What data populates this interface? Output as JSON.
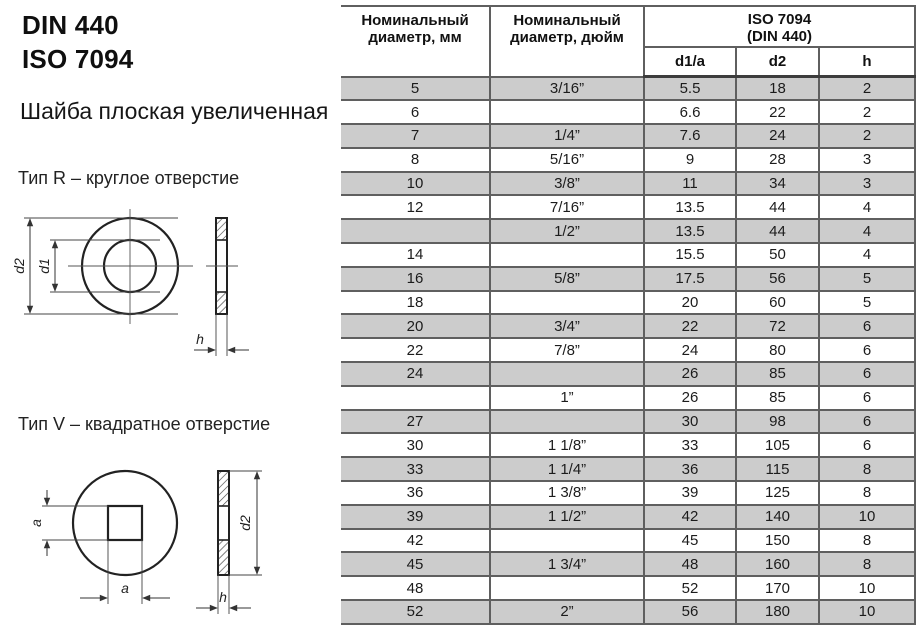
{
  "left": {
    "title_din": "DIN 440",
    "title_iso": "ISO 7094",
    "subtitle": "Шайба плоская увеличенная",
    "type_r_label": "Тип R – круглое отверстие",
    "type_v_label": "Тип V – квадратное отверстие",
    "drawing_r": {
      "dim_outer": "d2",
      "dim_inner": "d1",
      "dim_thickness": "h"
    },
    "drawing_v": {
      "dim_hole_side": "a",
      "dim_hole_bottom": "a",
      "dim_outer": "d2",
      "dim_thickness": "h"
    }
  },
  "table": {
    "header": {
      "col_mm": "Номинальный диаметр, мм",
      "col_inch": "Номинальный диаметр, дюйм",
      "group_title": "ISO 7094",
      "group_subtitle": "(DIN 440)",
      "sub_columns": [
        "d1/a",
        "d2",
        "h"
      ]
    },
    "rows": [
      [
        "5",
        "3/16”",
        "5.5",
        "18",
        "2"
      ],
      [
        "6",
        "",
        "6.6",
        "22",
        "2"
      ],
      [
        "7",
        "1/4”",
        "7.6",
        "24",
        "2"
      ],
      [
        "8",
        "5/16”",
        "9",
        "28",
        "3"
      ],
      [
        "10",
        "3/8”",
        "11",
        "34",
        "3"
      ],
      [
        "12",
        "7/16”",
        "13.5",
        "44",
        "4"
      ],
      [
        "",
        "1/2”",
        "13.5",
        "44",
        "4"
      ],
      [
        "14",
        "",
        "15.5",
        "50",
        "4"
      ],
      [
        "16",
        "5/8”",
        "17.5",
        "56",
        "5"
      ],
      [
        "18",
        "",
        "20",
        "60",
        "5"
      ],
      [
        "20",
        "3/4”",
        "22",
        "72",
        "6"
      ],
      [
        "22",
        "7/8”",
        "24",
        "80",
        "6"
      ],
      [
        "24",
        "",
        "26",
        "85",
        "6"
      ],
      [
        "",
        "1”",
        "26",
        "85",
        "6"
      ],
      [
        "27",
        "",
        "30",
        "98",
        "6"
      ],
      [
        "30",
        "1 1/8”",
        "33",
        "105",
        "6"
      ],
      [
        "33",
        "1 1/4”",
        "36",
        "115",
        "8"
      ],
      [
        "36",
        "1 3/8”",
        "39",
        "125",
        "8"
      ],
      [
        "39",
        "1 1/2”",
        "42",
        "140",
        "10"
      ],
      [
        "42",
        "",
        "45",
        "150",
        "8"
      ],
      [
        "45",
        "1 3/4”",
        "48",
        "160",
        "8"
      ],
      [
        "48",
        "",
        "52",
        "170",
        "10"
      ],
      [
        "52",
        "2”",
        "56",
        "180",
        "10"
      ]
    ],
    "row_stripe_color": "#cccccc"
  }
}
